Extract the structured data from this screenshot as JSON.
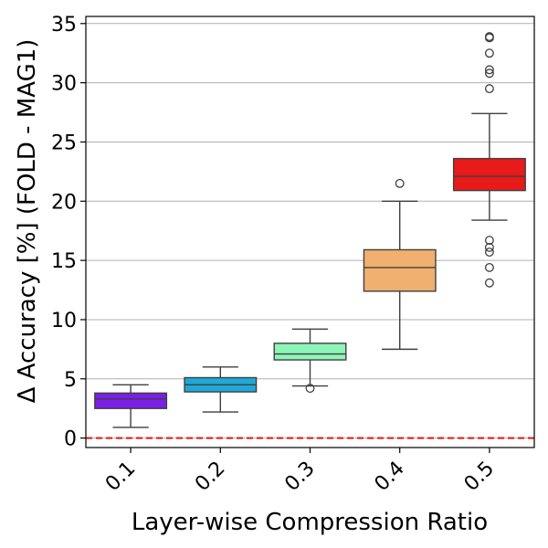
{
  "chart_data": {
    "type": "box",
    "title": "",
    "xlabel": "Layer-wise Compression Ratio",
    "ylabel": "Δ Accuracy [%] (FOLD - MAG1)",
    "ylim": [
      -0.8,
      35.6
    ],
    "yticks": [
      0,
      5,
      10,
      15,
      20,
      25,
      30,
      35
    ],
    "grid": "horizontal",
    "reference_line": {
      "y": 0,
      "color": "#e8150e",
      "style": "dashed"
    },
    "categories": [
      "0.1",
      "0.2",
      "0.3",
      "0.4",
      "0.5"
    ],
    "boxes": [
      {
        "category": "0.1",
        "color": "#7a1fe8",
        "whisker_low": 0.9,
        "q1": 2.5,
        "median": 3.3,
        "q3": 3.8,
        "whisker_high": 4.5,
        "outliers": []
      },
      {
        "category": "0.2",
        "color": "#1fa8d8",
        "whisker_low": 2.2,
        "q1": 3.9,
        "median": 4.5,
        "q3": 5.1,
        "whisker_high": 6.0,
        "outliers": []
      },
      {
        "category": "0.3",
        "color": "#8df5b8",
        "whisker_low": 4.4,
        "q1": 6.6,
        "median": 7.1,
        "q3": 8.0,
        "whisker_high": 9.2,
        "outliers": [
          4.2
        ]
      },
      {
        "category": "0.4",
        "color": "#efb070",
        "whisker_low": 7.5,
        "q1": 12.4,
        "median": 14.4,
        "q3": 15.9,
        "whisker_high": 20.0,
        "outliers": [
          21.5
        ]
      },
      {
        "category": "0.5",
        "color": "#e81a1a",
        "whisker_low": 18.4,
        "q1": 20.9,
        "median": 22.1,
        "q3": 23.6,
        "whisker_high": 27.4,
        "outliers": [
          13.1,
          14.4,
          15.7,
          16.1,
          16.7,
          29.5,
          30.8,
          31.1,
          32.5,
          33.8,
          33.9
        ]
      }
    ]
  }
}
